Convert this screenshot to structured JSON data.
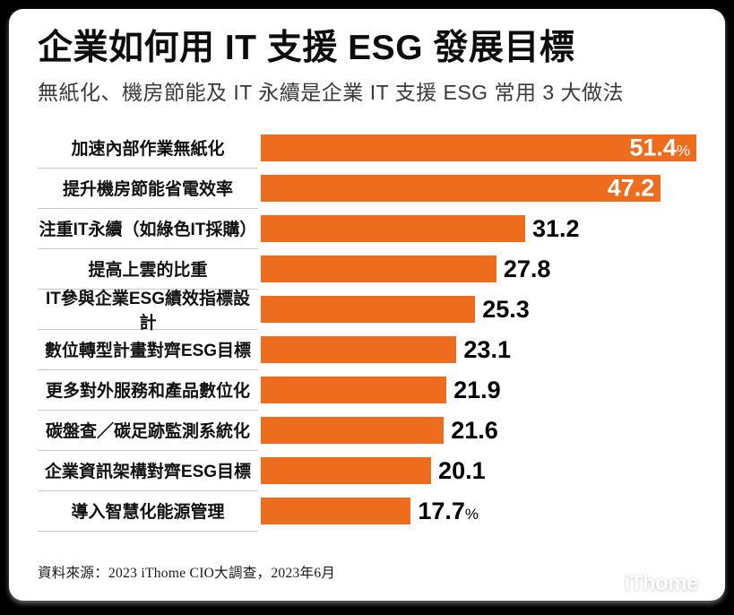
{
  "colors": {
    "background": "#000000",
    "card": "#FFFFFF",
    "bar": "#ED6C1E",
    "divider": "#C9C9C9",
    "title_text": "#0D0D0D",
    "subtitle_text": "#3A3A3A",
    "value_inside": "#FFFFFF",
    "value_outside": "#000000"
  },
  "footer": {
    "source": "資料來源：2023 iThome CIO大調查，2023年6月",
    "logo": "iThome"
  },
  "chart_data": {
    "type": "bar",
    "orientation": "horizontal",
    "title": "企業如何用 IT 支援 ESG 發展目標",
    "subtitle": "無紙化、機房節能及 IT 永續是企業 IT 支援 ESG 常用 3 大做法",
    "unit": "%",
    "xlim": [
      0,
      51.4
    ],
    "grid": false,
    "legend": false,
    "bar_color": "#ED6C1E",
    "categories": [
      "加速內部作業無紙化",
      "提升機房節能省電效率",
      "注重IT永續（如綠色IT採購）",
      "提高上雲的比重",
      "IT參與企業ESG績效指標設計",
      "數位轉型計畫對齊ESG目標",
      "更多對外服務和產品數位化",
      "碳盤查／碳足跡監測系統化",
      "企業資訊架構對齊ESG目標",
      "導入智慧化能源管理"
    ],
    "values": [
      51.4,
      47.2,
      31.2,
      27.8,
      25.3,
      23.1,
      21.9,
      21.6,
      20.1,
      17.7
    ],
    "value_inside_bar": [
      true,
      true,
      false,
      false,
      false,
      false,
      false,
      false,
      false,
      false
    ],
    "percent_suffix": [
      true,
      false,
      false,
      false,
      false,
      false,
      false,
      false,
      false,
      true
    ]
  }
}
